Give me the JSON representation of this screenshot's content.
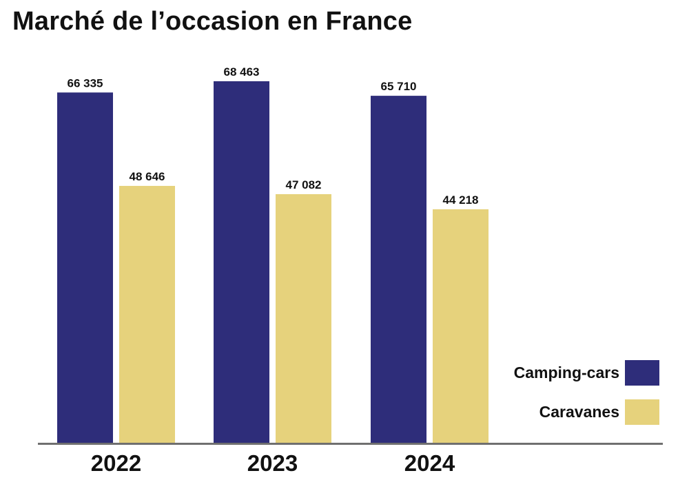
{
  "chart_data": {
    "type": "bar",
    "title": "Marché de l’occasion en France",
    "categories": [
      "2022",
      "2023",
      "2024"
    ],
    "series": [
      {
        "name": "Camping-cars",
        "color": "#2e2d7a",
        "values": [
          66335,
          68463,
          65710
        ],
        "labels": [
          "66 335",
          "68 463",
          "65 710"
        ]
      },
      {
        "name": "Caravanes",
        "color": "#e6d27c",
        "values": [
          48646,
          47082,
          44218
        ],
        "labels": [
          "48 646",
          "47 082",
          "44 218"
        ]
      }
    ],
    "ylim": [
      0,
      76000
    ],
    "grid": false,
    "legend_position": "bottom-right",
    "baseline_color": "#6f6f6f"
  }
}
